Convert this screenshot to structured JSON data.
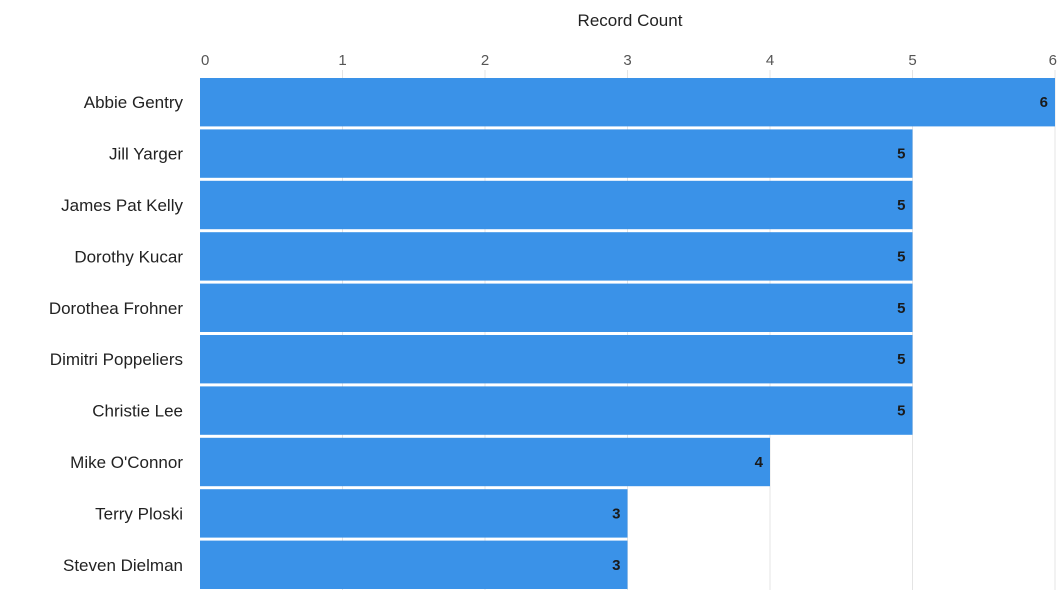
{
  "chart_data": {
    "type": "bar",
    "orientation": "horizontal",
    "title": "",
    "xlabel": "Record Count",
    "ylabel": "",
    "x_axis_position": "top",
    "xlim": [
      0,
      6
    ],
    "x_ticks": [
      "0",
      "1",
      "2",
      "3",
      "4",
      "5",
      "6"
    ],
    "categories": [
      "Abbie Gentry",
      "Jill Yarger",
      "James Pat Kelly",
      "Dorothy Kucar",
      "Dorothea Frohner",
      "Dimitri Poppeliers",
      "Christie Lee",
      "Mike O'Connor",
      "Terry Ploski",
      "Steven Dielman"
    ],
    "values": [
      6,
      5,
      5,
      5,
      5,
      5,
      5,
      4,
      3,
      3
    ],
    "data_labels": [
      "6",
      "5",
      "5",
      "5",
      "5",
      "5",
      "5",
      "4",
      "3",
      "3"
    ],
    "grid": true,
    "legend": "none",
    "bar_color": "#3A92E8",
    "gridline_color": "#E4E4E4"
  }
}
